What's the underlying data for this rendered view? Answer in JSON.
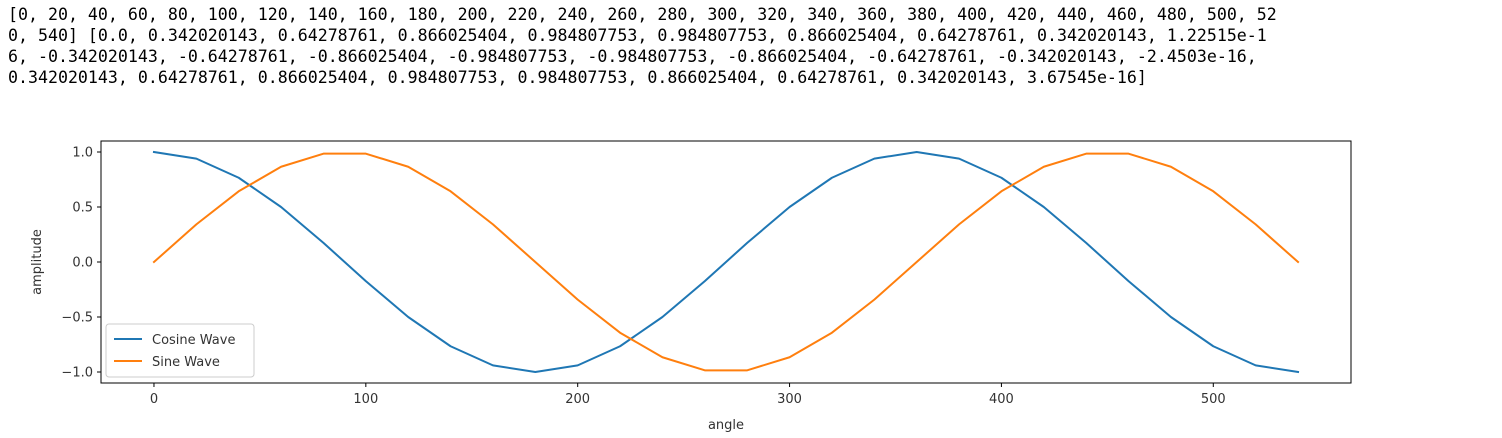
{
  "output": {
    "lines": [
      "[0, 20, 40, 60, 80, 100, 120, 140, 160, 180, 200, 220, 240, 260, 280, 300, 320, 340, 360, 380, 400, 420, 440, 460, 480, 500, 52",
      "0, 540] [0.0, 0.342020143, 0.64278761, 0.866025404, 0.984807753, 0.984807753, 0.866025404, 0.64278761, 0.342020143, 1.22515e-1",
      "6, -0.342020143, -0.64278761, -0.866025404, -0.984807753, -0.984807753, -0.866025404, -0.64278761, -0.342020143, -2.4503e-16,",
      "0.342020143, 0.64278761, 0.866025404, 0.984807753, 0.984807753, 0.866025404, 0.64278761, 0.342020143, 3.67545e-16]"
    ]
  },
  "chart_data": {
    "type": "line",
    "title": "",
    "xlabel": "angle",
    "ylabel": "amplitude",
    "xlim": [
      -25,
      565
    ],
    "ylim": [
      -1.1,
      1.1
    ],
    "xticks": [
      0,
      100,
      200,
      300,
      400,
      500
    ],
    "yticks": [
      -1.0,
      -0.5,
      0.0,
      0.5,
      1.0
    ],
    "xtick_labels": [
      "0",
      "100",
      "200",
      "300",
      "400",
      "500"
    ],
    "ytick_labels": [
      "−1.0",
      "−0.5",
      "0.0",
      "0.5",
      "1.0"
    ],
    "grid": false,
    "legend_position": "lower-left",
    "x": [
      0,
      20,
      40,
      60,
      80,
      100,
      120,
      140,
      160,
      180,
      200,
      220,
      240,
      260,
      280,
      300,
      320,
      340,
      360,
      380,
      400,
      420,
      440,
      460,
      480,
      500,
      520,
      540
    ],
    "series": [
      {
        "name": "Cosine Wave",
        "color": "#1f77b4",
        "values": [
          1.0,
          0.9397,
          0.766,
          0.5,
          0.1736,
          -0.1736,
          -0.5,
          -0.766,
          -0.9397,
          -1.0,
          -0.9397,
          -0.766,
          -0.5,
          -0.1736,
          0.1736,
          0.5,
          0.766,
          0.9397,
          1.0,
          0.9397,
          0.766,
          0.5,
          0.1736,
          -0.1736,
          -0.5,
          -0.766,
          -0.9397,
          -1.0
        ]
      },
      {
        "name": "Sine Wave",
        "color": "#ff7f0e",
        "values": [
          0.0,
          0.342020143,
          0.64278761,
          0.866025404,
          0.984807753,
          0.984807753,
          0.866025404,
          0.64278761,
          0.342020143,
          0.0,
          -0.342020143,
          -0.64278761,
          -0.866025404,
          -0.984807753,
          -0.984807753,
          -0.866025404,
          -0.64278761,
          -0.342020143,
          0.0,
          0.342020143,
          0.64278761,
          0.866025404,
          0.984807753,
          0.984807753,
          0.866025404,
          0.64278761,
          0.342020143,
          0.0
        ]
      }
    ]
  }
}
